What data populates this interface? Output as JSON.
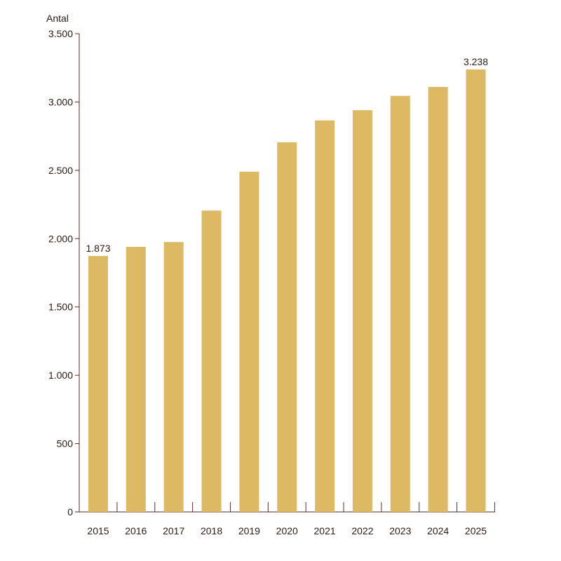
{
  "chart_data": {
    "type": "bar",
    "ylabel": "Antal",
    "ylim": [
      0,
      3500
    ],
    "yticks": [
      0,
      500,
      1000,
      1500,
      2000,
      2500,
      3000,
      3500
    ],
    "ytick_labels": [
      "0",
      "500",
      "1.000",
      "1.500",
      "2.000",
      "2.500",
      "3.000",
      "3.500"
    ],
    "categories": [
      "2015",
      "2016",
      "2017",
      "2018",
      "2019",
      "2020",
      "2021",
      "2022",
      "2023",
      "2024",
      "2025"
    ],
    "values": [
      1873,
      1940,
      1975,
      2205,
      2490,
      2705,
      2865,
      2940,
      3045,
      3110,
      3238
    ],
    "data_labels": [
      {
        "index": 0,
        "text": "1.873"
      },
      {
        "index": 10,
        "text": "3.238"
      }
    ],
    "grid": false,
    "colors": {
      "bar": "#ddb964",
      "axis": "#5a2a2a",
      "text": "#2b1a12"
    }
  }
}
